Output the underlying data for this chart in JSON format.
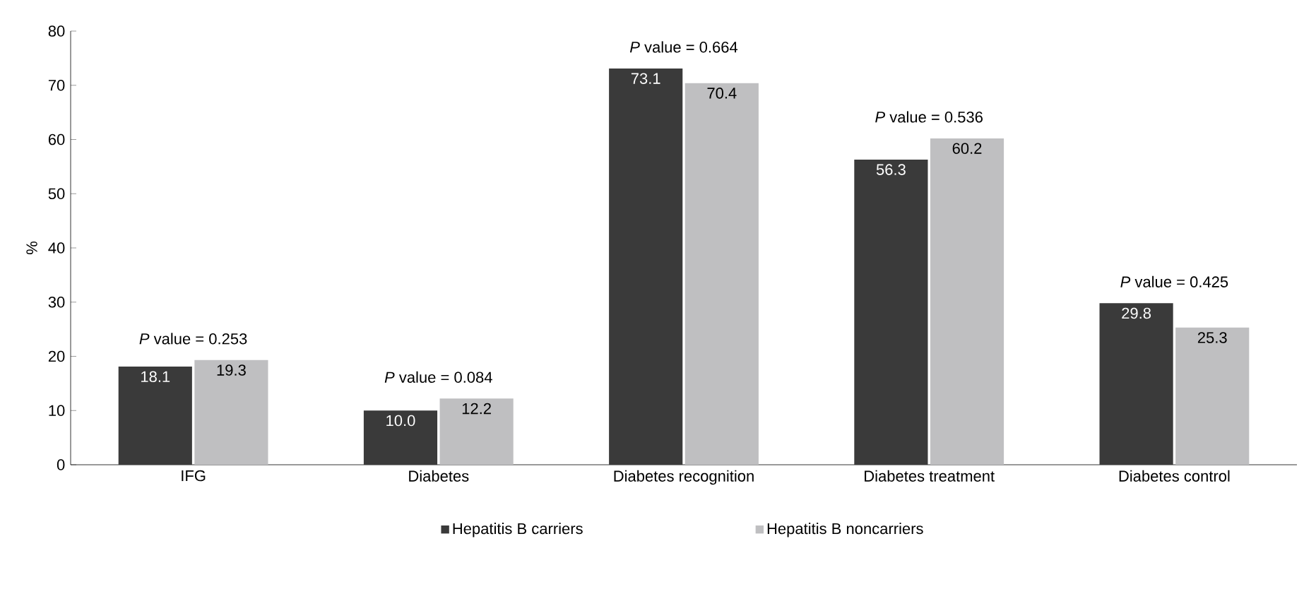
{
  "chart_data": {
    "type": "bar",
    "ylabel": "%",
    "categories": [
      "IFG",
      "Diabetes",
      "Diabetes recognition",
      "Diabetes treatment",
      "Diabetes control"
    ],
    "series": [
      {
        "name": "Hepatitis B carriers",
        "color": "#3a3a3a",
        "values": [
          18.1,
          10.0,
          73.1,
          56.3,
          29.8
        ],
        "value_labels": [
          "18.1",
          "10.0",
          "73.1",
          "56.3",
          "29.8"
        ]
      },
      {
        "name": "Hepatitis B noncarriers",
        "color": "#bfbfc1",
        "values": [
          19.3,
          12.2,
          70.4,
          60.2,
          25.3
        ],
        "value_labels": [
          "19.3",
          "12.2",
          "70.4",
          "60.2",
          "25.3"
        ]
      }
    ],
    "ylim": [
      0,
      80
    ],
    "yticks": [
      0,
      10,
      20,
      30,
      40,
      50,
      60,
      70,
      80
    ],
    "grid": false,
    "legend": "bottom",
    "annotations": [
      "*P* value = 0.253",
      "*P* value = 0.084",
      "*P* value = 0.664",
      "*P* value = 0.536",
      "*P* value = 0.425"
    ]
  }
}
